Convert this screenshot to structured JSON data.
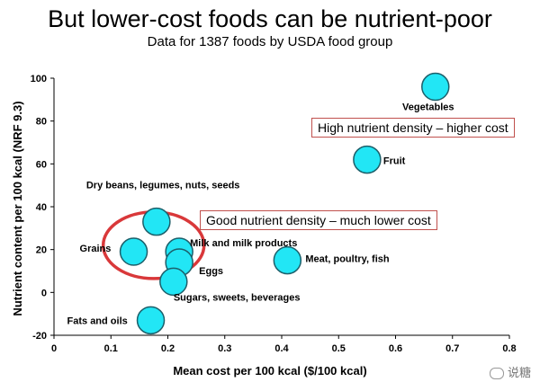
{
  "chart_data": {
    "type": "scatter",
    "title": "But lower-cost foods can be nutrient-poor",
    "subtitle": "Data for 1387 foods by USDA food group",
    "xlabel": "Mean cost per 100 kcal ($/100 kcal)",
    "ylabel": "Nutrient content per 100 kcal (NRF 9.3)",
    "xlim": [
      0,
      0.8
    ],
    "ylim": [
      -20,
      100
    ],
    "x_ticks": [
      "0",
      "0.1",
      "0.2",
      "0.3",
      "0.4",
      "0.5",
      "0.6",
      "0.7",
      "0.8"
    ],
    "y_ticks": [
      "-20",
      "0",
      "20",
      "40",
      "60",
      "80",
      "100"
    ],
    "points": [
      {
        "name": "Vegetables",
        "x": 0.67,
        "y": 96
      },
      {
        "name": "Fruit",
        "x": 0.55,
        "y": 62
      },
      {
        "name": "Dry beans, legumes, nuts, seeds",
        "x": 0.18,
        "y": 33
      },
      {
        "name": "Milk and milk products",
        "x": 0.22,
        "y": 19
      },
      {
        "name": "Grains",
        "x": 0.14,
        "y": 19
      },
      {
        "name": "Eggs",
        "x": 0.22,
        "y": 14
      },
      {
        "name": "Meat, poultry, fish",
        "x": 0.41,
        "y": 15
      },
      {
        "name": "Sugars, sweets, beverages",
        "x": 0.21,
        "y": 5
      },
      {
        "name": "Fats and oils",
        "x": 0.17,
        "y": -13
      }
    ],
    "annotations": [
      "High nutrient density – higher cost",
      "Good nutrient density – much lower cost"
    ]
  },
  "colors": {
    "marker_fill": "#22e6f5",
    "marker_stroke": "#1c5f6a",
    "highlight_ellipse": "#d9383a",
    "box_border": "#c0504d"
  },
  "watermark": "说糖"
}
